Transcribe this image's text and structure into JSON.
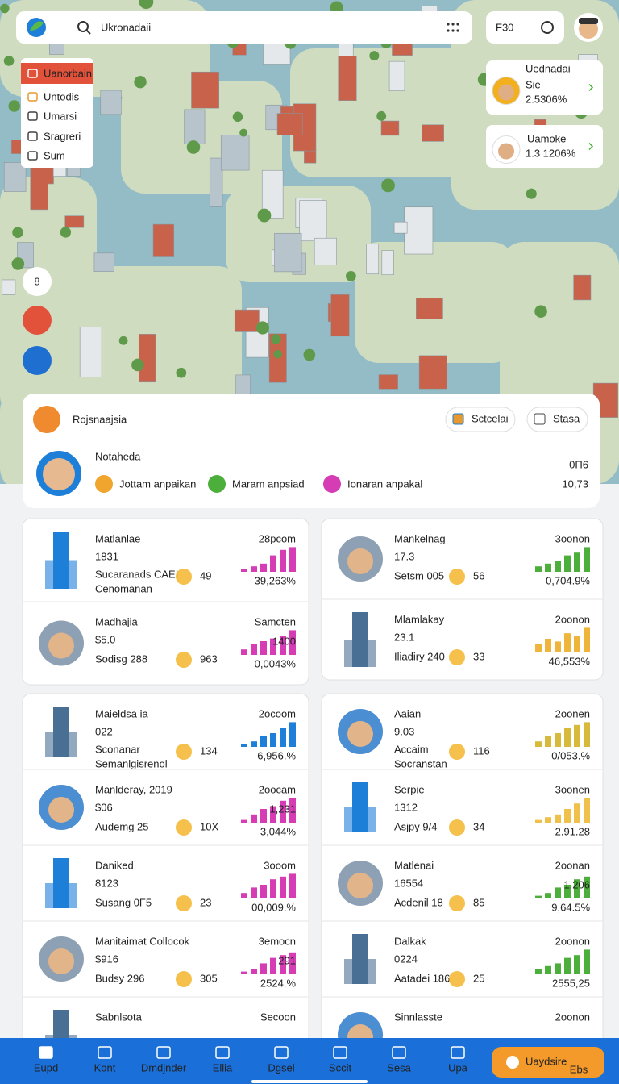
{
  "search": {
    "query": "Ukronadaii",
    "badge": "F30"
  },
  "side_menu": [
    "Uanorbain",
    "Untodis",
    "Umarsi",
    "Sragreri",
    "Sum"
  ],
  "profile_cards": [
    {
      "name": "Uednadai",
      "sub": "Sie",
      "value": "2.5306%"
    },
    {
      "name": "Uamoke",
      "value": "1.3 1206%"
    }
  ],
  "map_button": "8",
  "summary": {
    "title": "Rojsnaajsia",
    "buttons": [
      "Sctcelai",
      "Stasa"
    ],
    "name": "Notaheda",
    "tags": [
      "Jottam anpaikan",
      "Maram anpsiad",
      "Ionaran anpakal"
    ],
    "value_top": "0Π6",
    "value": "10,73"
  },
  "card_groups": [
    {
      "items": [
        {
          "title": "Matlanlae",
          "value": "1831",
          "sub": "Sucaranads CAEI",
          "sub2": "Cenomanan",
          "num": "49",
          "top": "28pcom",
          "pct": "39,263%",
          "color": "#d63cb4",
          "bars": [
            1,
            2,
            3,
            6,
            8,
            9
          ]
        },
        {
          "title": "Madhajia",
          "value": "$5.0",
          "sub": "Sodisg 288",
          "num": "963",
          "top": "Samcten",
          "pct": "0,0043%",
          "chart_label": "1400",
          "color": "#d63cb4",
          "bars": [
            2,
            4,
            5,
            6,
            7,
            9
          ]
        }
      ]
    },
    {
      "items": [
        {
          "title": "Mankelnag",
          "value": "17.3",
          "sub": "Setsm 005",
          "num": "56",
          "top": "3oonon",
          "pct": "0,704.9%",
          "color": "#4caf3c",
          "bars": [
            2,
            3,
            4,
            6,
            7,
            9
          ]
        },
        {
          "title": "Mlamlakay",
          "value": "23.1",
          "sub": "Iliadiry 240",
          "num": "33",
          "top": "2oonon",
          "pct": "46,553%",
          "color": "#efb43a",
          "bars": [
            3,
            5,
            4,
            7,
            6,
            9
          ]
        }
      ]
    },
    {
      "items": [
        {
          "title": "Maieldsa ia",
          "value": "022",
          "sub": "Sconanar",
          "sub2": "Semanlgisrenol",
          "num": "134",
          "top": "2ocoom",
          "pct": "6,956.%",
          "color": "#1e7fd8",
          "bars": [
            1,
            2,
            4,
            5,
            7,
            9
          ]
        },
        {
          "title": "Manlderay, 2019",
          "value": "$06",
          "sub": "Audemg 25",
          "num": "10X",
          "top": "2oocam",
          "pct": "3,044%",
          "chart_label": "1,231",
          "color": "#d63cb4",
          "bars": [
            1,
            3,
            5,
            6,
            8,
            9
          ]
        },
        {
          "title": "Daniked",
          "value": "8123",
          "sub": "Susang 0F5",
          "num": "23",
          "top": "3ooom",
          "pct": "00,009.%",
          "color": "#d63cb4",
          "bars": [
            2,
            4,
            5,
            7,
            8,
            9
          ]
        },
        {
          "title": "Manitaimat Collocok",
          "value": "$916",
          "sub": "Budsy 296",
          "num": "305",
          "top": "3emocn",
          "pct": "2524.%",
          "chart_label": "291",
          "color": "#d63cb4",
          "bars": [
            1,
            2,
            4,
            6,
            7,
            8
          ]
        },
        {
          "title": "Sabnlsota",
          "top": "Secoon"
        }
      ]
    },
    {
      "items": [
        {
          "title": "Aaian",
          "value": "9.03",
          "sub": "Accaim",
          "sub2": "Socranstan",
          "num": "116",
          "top": "2oonen",
          "pct": "0/053.%",
          "color": "#d7b93c",
          "bars": [
            2,
            4,
            5,
            7,
            8,
            9
          ]
        },
        {
          "title": "Serpie",
          "value": "1312",
          "sub": "Asjpy 9/4",
          "num": "34",
          "top": "3oonen",
          "pct": "2.91.28",
          "color": "#efc04a",
          "bars": [
            1,
            2,
            3,
            5,
            7,
            9
          ]
        },
        {
          "title": "Matlenai",
          "value": "16554",
          "sub": "Acdenil 18",
          "num": "85",
          "top": "2oonan",
          "pct": "9,64.5%",
          "chart_label": "1,206",
          "color": "#4caf3c",
          "bars": [
            1,
            2,
            4,
            5,
            7,
            8
          ]
        },
        {
          "title": "Dalkak",
          "value": "0224",
          "sub": "Aatadei 186",
          "num": "25",
          "top": "2oonon",
          "pct": "2555,25",
          "color": "#4caf3c",
          "bars": [
            2,
            3,
            4,
            6,
            7,
            9
          ]
        },
        {
          "title": "Sinnlasste",
          "top": "2oonon"
        }
      ]
    }
  ],
  "nav": [
    "Eupd",
    "Kont",
    "Dmdjnder",
    "Ellia",
    "Dgsel",
    "Sccit",
    "Sesa",
    "Upa"
  ],
  "cta": {
    "label": "Uaydsire",
    "sub": "Ebs"
  }
}
